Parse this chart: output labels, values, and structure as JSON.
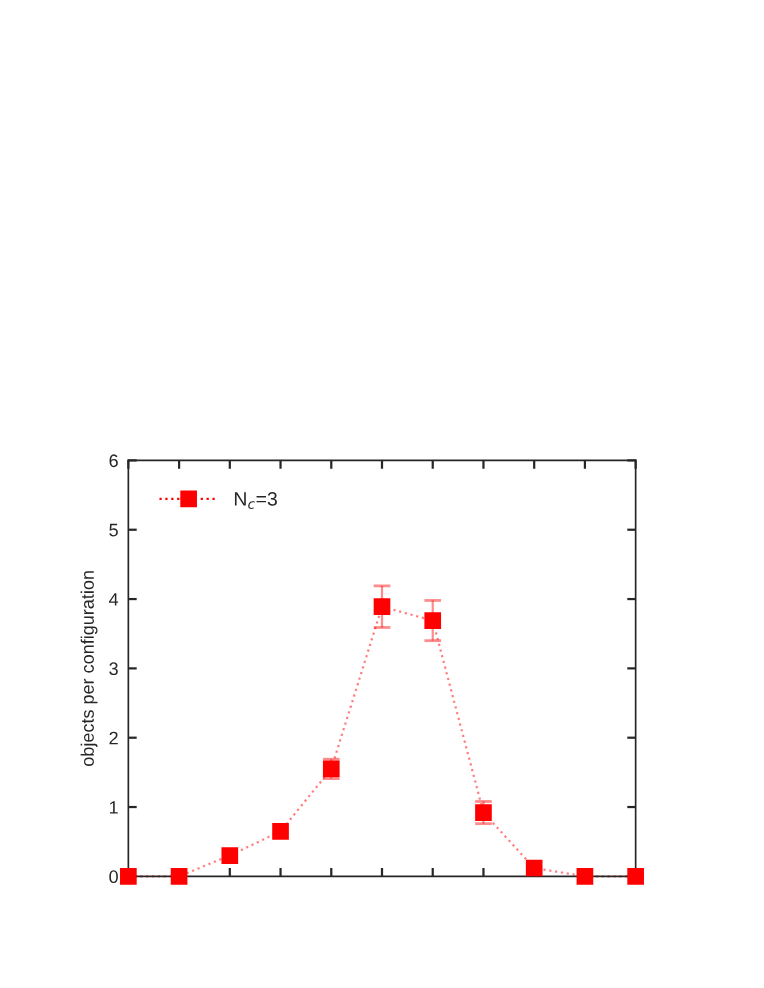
{
  "chart_data": {
    "type": "line",
    "ylabel": "objects per configuration",
    "categories": [
      null,
      null,
      null,
      null,
      null,
      null,
      null,
      null,
      null,
      null,
      null
    ],
    "series": [
      {
        "name": "N$_{c}$=3",
        "color": "#ff0000",
        "values": [
          0,
          0,
          0.3,
          0.65,
          1.55,
          3.89,
          3.69,
          0.92,
          0.12,
          0,
          0
        ],
        "errors": [
          null,
          null,
          null,
          null,
          0.14,
          0.3,
          0.29,
          0.16,
          null,
          null,
          null
        ]
      }
    ],
    "ylim": [
      0,
      6
    ],
    "yticks": [
      0,
      1,
      2,
      3,
      4,
      5,
      6
    ],
    "grid": false,
    "legend": "top left",
    "marker": "square",
    "line_style": "dotted"
  }
}
